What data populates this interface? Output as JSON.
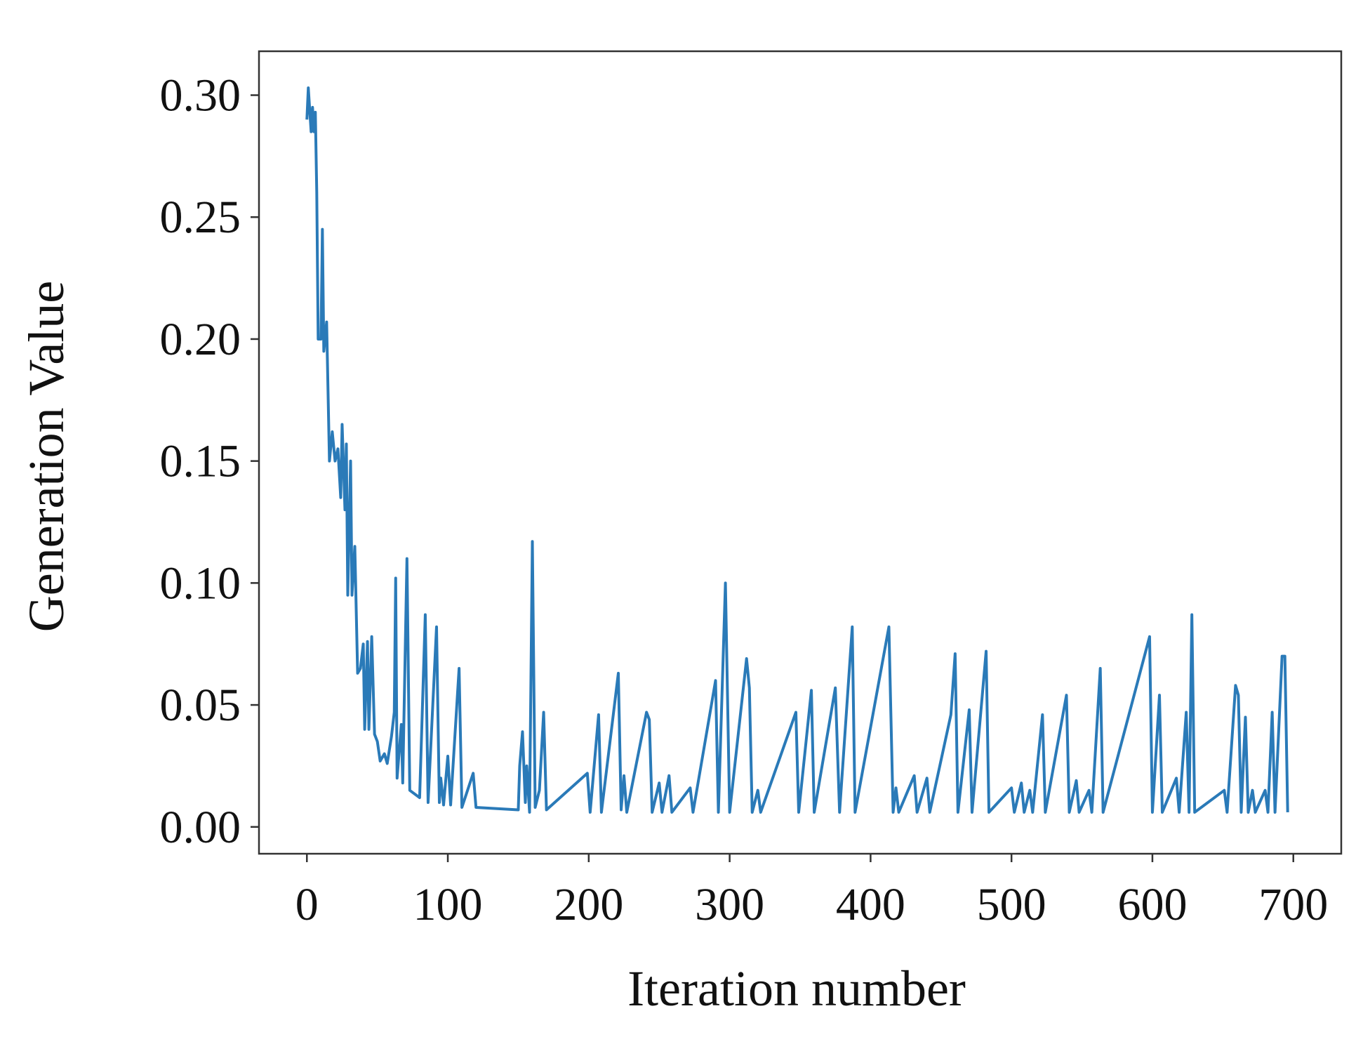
{
  "chart_data": {
    "type": "line",
    "xlabel": "Iteration number",
    "ylabel": "Generation Value",
    "x": [
      0,
      1,
      3,
      4,
      5,
      6,
      7,
      8,
      10,
      11,
      12,
      14,
      16,
      18,
      20,
      22,
      24,
      25,
      27,
      28,
      29,
      31,
      32,
      34,
      36,
      38,
      40,
      41,
      43,
      44,
      46,
      48,
      50,
      52,
      55,
      57,
      60,
      62,
      63,
      64,
      67,
      68,
      71,
      73,
      80,
      84,
      86,
      92,
      94,
      95,
      97,
      100,
      102,
      108,
      110,
      118,
      120,
      150,
      151,
      153,
      155,
      156,
      158,
      160,
      162,
      165,
      168,
      170,
      199,
      201,
      207,
      209,
      221,
      223,
      225,
      227,
      241,
      243,
      245,
      250,
      252,
      257,
      259,
      272,
      274,
      290,
      292,
      297,
      300,
      312,
      314,
      316,
      320,
      322,
      347,
      349,
      358,
      360,
      375,
      378,
      387,
      389,
      413,
      416,
      418,
      420,
      431,
      433,
      440,
      442,
      457,
      460,
      462,
      470,
      472,
      482,
      484,
      500,
      502,
      507,
      509,
      513,
      515,
      522,
      524,
      539,
      541,
      546,
      548,
      555,
      557,
      563,
      565,
      598,
      600,
      605,
      607,
      617,
      619,
      624,
      626,
      628,
      630,
      651,
      653,
      659,
      661,
      663,
      666,
      668,
      671,
      673,
      680,
      682,
      685,
      687,
      692,
      694,
      696
    ],
    "series": [
      {
        "name": "Generation Value",
        "color": "#2a7ab8",
        "values": [
          0.29,
          0.303,
          0.285,
          0.295,
          0.285,
          0.293,
          0.26,
          0.2,
          0.2,
          0.245,
          0.195,
          0.207,
          0.15,
          0.162,
          0.15,
          0.155,
          0.135,
          0.165,
          0.13,
          0.157,
          0.095,
          0.15,
          0.095,
          0.115,
          0.063,
          0.065,
          0.075,
          0.04,
          0.076,
          0.04,
          0.078,
          0.038,
          0.035,
          0.027,
          0.03,
          0.026,
          0.037,
          0.047,
          0.102,
          0.02,
          0.042,
          0.018,
          0.11,
          0.015,
          0.012,
          0.087,
          0.01,
          0.082,
          0.01,
          0.02,
          0.009,
          0.029,
          0.009,
          0.065,
          0.008,
          0.022,
          0.008,
          0.007,
          0.025,
          0.039,
          0.01,
          0.025,
          0.006,
          0.117,
          0.008,
          0.015,
          0.047,
          0.007,
          0.022,
          0.006,
          0.046,
          0.006,
          0.063,
          0.007,
          0.021,
          0.006,
          0.047,
          0.044,
          0.006,
          0.018,
          0.006,
          0.021,
          0.006,
          0.016,
          0.006,
          0.06,
          0.006,
          0.1,
          0.006,
          0.069,
          0.057,
          0.006,
          0.015,
          0.006,
          0.047,
          0.006,
          0.056,
          0.006,
          0.057,
          0.006,
          0.082,
          0.006,
          0.082,
          0.006,
          0.016,
          0.006,
          0.021,
          0.006,
          0.02,
          0.006,
          0.046,
          0.071,
          0.006,
          0.048,
          0.006,
          0.072,
          0.006,
          0.016,
          0.006,
          0.018,
          0.006,
          0.015,
          0.006,
          0.046,
          0.006,
          0.054,
          0.006,
          0.019,
          0.006,
          0.015,
          0.006,
          0.065,
          0.006,
          0.078,
          0.006,
          0.054,
          0.006,
          0.02,
          0.006,
          0.047,
          0.006,
          0.087,
          0.006,
          0.015,
          0.006,
          0.058,
          0.054,
          0.006,
          0.045,
          0.006,
          0.015,
          0.006,
          0.015,
          0.006,
          0.047,
          0.006,
          0.07,
          0.07,
          0.006
        ]
      }
    ],
    "xlim": [
      -34,
      734
    ],
    "ylim": [
      -0.011,
      0.318
    ],
    "xticks": [
      0,
      100,
      200,
      300,
      400,
      500,
      600,
      700
    ],
    "yticks": [
      {
        "value": 0,
        "label": "0.00"
      },
      {
        "value": 0.05,
        "label": "0.05"
      },
      {
        "value": 0.1,
        "label": "0.10"
      },
      {
        "value": 0.15,
        "label": "0.15"
      },
      {
        "value": 0.2,
        "label": "0.20"
      },
      {
        "value": 0.25,
        "label": "0.25"
      },
      {
        "value": 0.3,
        "label": "0.30"
      }
    ],
    "grid": false
  }
}
